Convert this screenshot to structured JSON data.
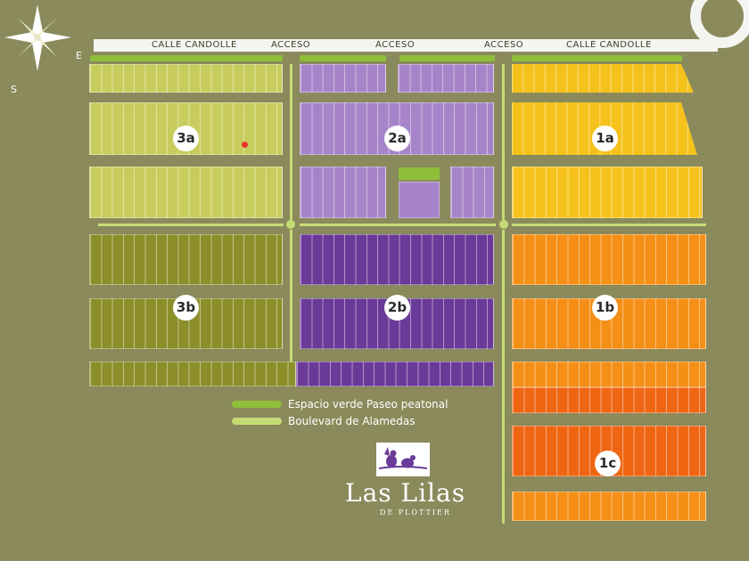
{
  "street": {
    "labels": [
      "CALLE CANDOLLE",
      "ACCESO",
      "ACCESO",
      "ACCESO",
      "CALLE CANDOLLE"
    ]
  },
  "zones": {
    "z3a": "3a",
    "z2a": "2a",
    "z1a": "1a",
    "z3b": "3b",
    "z2b": "2b",
    "z1b": "1b",
    "z1c": "1c"
  },
  "legend": {
    "green": "Espacio verde Paseo peatonal",
    "boulevard": "Boulevard de Alamedas"
  },
  "brand": {
    "name": "Las Lilas",
    "sub": "DE PLOTTIER",
    "logo_icon": "birds-on-branch-logo"
  },
  "compass": {
    "e": "E",
    "s": "S",
    "icon": "compass-star-icon"
  },
  "colors": {
    "zone_3a": "#c8cc5c",
    "zone_2a": "#a784c9",
    "zone_1a": "#f5c21c",
    "zone_3b": "#8c8e2a",
    "zone_2b": "#6a3a98",
    "zone_1b": "#f58f16",
    "zone_1c": "#ef6512",
    "green_strip": "#8fbe3a",
    "boulevard": "#c5dc74",
    "marker": "#e8312a"
  }
}
